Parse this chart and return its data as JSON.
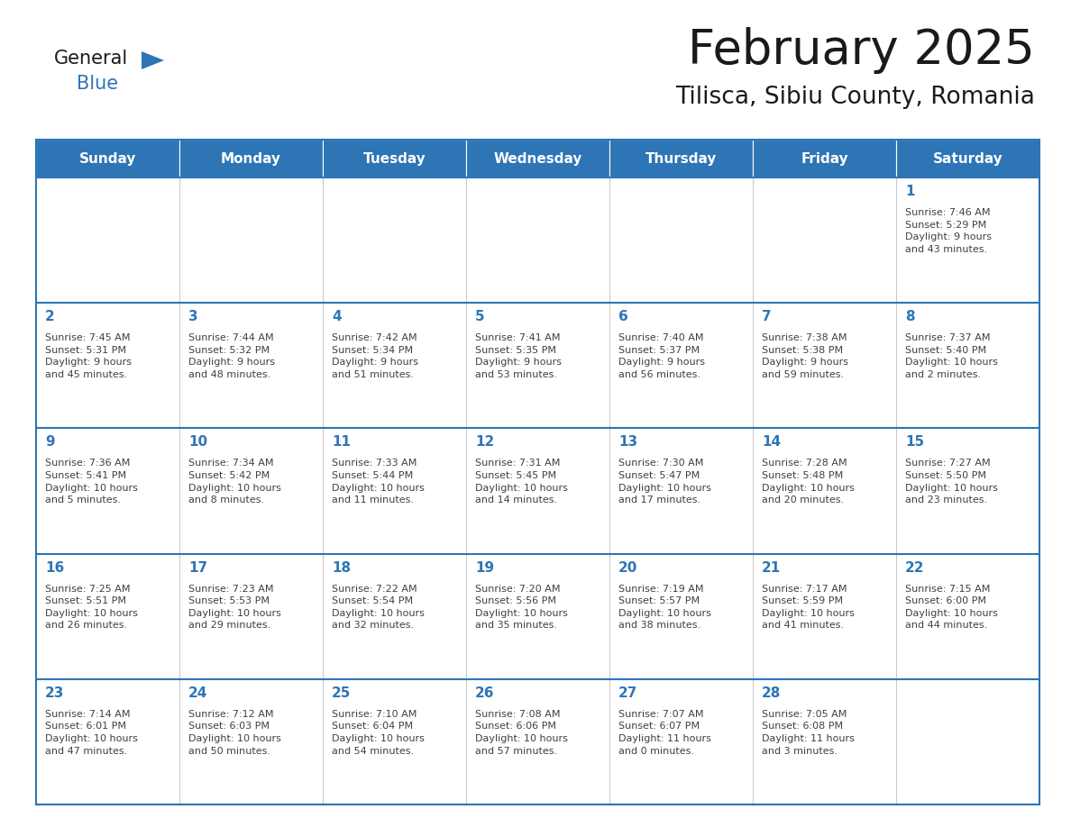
{
  "title": "February 2025",
  "subtitle": "Tilisca, Sibiu County, Romania",
  "header_bg_color": "#2e75b6",
  "header_text_color": "#ffffff",
  "cell_bg_color": "#ffffff",
  "border_color": "#2e75b6",
  "day_number_color": "#2e75b6",
  "cell_text_color": "#404040",
  "grid_line_color": "#aaaaaa",
  "days_of_week": [
    "Sunday",
    "Monday",
    "Tuesday",
    "Wednesday",
    "Thursday",
    "Friday",
    "Saturday"
  ],
  "weeks": [
    [
      {
        "day": 0,
        "info": ""
      },
      {
        "day": 0,
        "info": ""
      },
      {
        "day": 0,
        "info": ""
      },
      {
        "day": 0,
        "info": ""
      },
      {
        "day": 0,
        "info": ""
      },
      {
        "day": 0,
        "info": ""
      },
      {
        "day": 1,
        "info": "Sunrise: 7:46 AM\nSunset: 5:29 PM\nDaylight: 9 hours\nand 43 minutes."
      }
    ],
    [
      {
        "day": 2,
        "info": "Sunrise: 7:45 AM\nSunset: 5:31 PM\nDaylight: 9 hours\nand 45 minutes."
      },
      {
        "day": 3,
        "info": "Sunrise: 7:44 AM\nSunset: 5:32 PM\nDaylight: 9 hours\nand 48 minutes."
      },
      {
        "day": 4,
        "info": "Sunrise: 7:42 AM\nSunset: 5:34 PM\nDaylight: 9 hours\nand 51 minutes."
      },
      {
        "day": 5,
        "info": "Sunrise: 7:41 AM\nSunset: 5:35 PM\nDaylight: 9 hours\nand 53 minutes."
      },
      {
        "day": 6,
        "info": "Sunrise: 7:40 AM\nSunset: 5:37 PM\nDaylight: 9 hours\nand 56 minutes."
      },
      {
        "day": 7,
        "info": "Sunrise: 7:38 AM\nSunset: 5:38 PM\nDaylight: 9 hours\nand 59 minutes."
      },
      {
        "day": 8,
        "info": "Sunrise: 7:37 AM\nSunset: 5:40 PM\nDaylight: 10 hours\nand 2 minutes."
      }
    ],
    [
      {
        "day": 9,
        "info": "Sunrise: 7:36 AM\nSunset: 5:41 PM\nDaylight: 10 hours\nand 5 minutes."
      },
      {
        "day": 10,
        "info": "Sunrise: 7:34 AM\nSunset: 5:42 PM\nDaylight: 10 hours\nand 8 minutes."
      },
      {
        "day": 11,
        "info": "Sunrise: 7:33 AM\nSunset: 5:44 PM\nDaylight: 10 hours\nand 11 minutes."
      },
      {
        "day": 12,
        "info": "Sunrise: 7:31 AM\nSunset: 5:45 PM\nDaylight: 10 hours\nand 14 minutes."
      },
      {
        "day": 13,
        "info": "Sunrise: 7:30 AM\nSunset: 5:47 PM\nDaylight: 10 hours\nand 17 minutes."
      },
      {
        "day": 14,
        "info": "Sunrise: 7:28 AM\nSunset: 5:48 PM\nDaylight: 10 hours\nand 20 minutes."
      },
      {
        "day": 15,
        "info": "Sunrise: 7:27 AM\nSunset: 5:50 PM\nDaylight: 10 hours\nand 23 minutes."
      }
    ],
    [
      {
        "day": 16,
        "info": "Sunrise: 7:25 AM\nSunset: 5:51 PM\nDaylight: 10 hours\nand 26 minutes."
      },
      {
        "day": 17,
        "info": "Sunrise: 7:23 AM\nSunset: 5:53 PM\nDaylight: 10 hours\nand 29 minutes."
      },
      {
        "day": 18,
        "info": "Sunrise: 7:22 AM\nSunset: 5:54 PM\nDaylight: 10 hours\nand 32 minutes."
      },
      {
        "day": 19,
        "info": "Sunrise: 7:20 AM\nSunset: 5:56 PM\nDaylight: 10 hours\nand 35 minutes."
      },
      {
        "day": 20,
        "info": "Sunrise: 7:19 AM\nSunset: 5:57 PM\nDaylight: 10 hours\nand 38 minutes."
      },
      {
        "day": 21,
        "info": "Sunrise: 7:17 AM\nSunset: 5:59 PM\nDaylight: 10 hours\nand 41 minutes."
      },
      {
        "day": 22,
        "info": "Sunrise: 7:15 AM\nSunset: 6:00 PM\nDaylight: 10 hours\nand 44 minutes."
      }
    ],
    [
      {
        "day": 23,
        "info": "Sunrise: 7:14 AM\nSunset: 6:01 PM\nDaylight: 10 hours\nand 47 minutes."
      },
      {
        "day": 24,
        "info": "Sunrise: 7:12 AM\nSunset: 6:03 PM\nDaylight: 10 hours\nand 50 minutes."
      },
      {
        "day": 25,
        "info": "Sunrise: 7:10 AM\nSunset: 6:04 PM\nDaylight: 10 hours\nand 54 minutes."
      },
      {
        "day": 26,
        "info": "Sunrise: 7:08 AM\nSunset: 6:06 PM\nDaylight: 10 hours\nand 57 minutes."
      },
      {
        "day": 27,
        "info": "Sunrise: 7:07 AM\nSunset: 6:07 PM\nDaylight: 11 hours\nand 0 minutes."
      },
      {
        "day": 28,
        "info": "Sunrise: 7:05 AM\nSunset: 6:08 PM\nDaylight: 11 hours\nand 3 minutes."
      },
      {
        "day": 0,
        "info": ""
      }
    ]
  ],
  "logo_text_general": "General",
  "logo_text_blue": "Blue",
  "logo_triangle_color": "#2e75b6",
  "logo_general_color": "#1a1a1a",
  "logo_blue_color": "#2e75b6",
  "title_color": "#1a1a1a",
  "subtitle_color": "#1a1a1a"
}
